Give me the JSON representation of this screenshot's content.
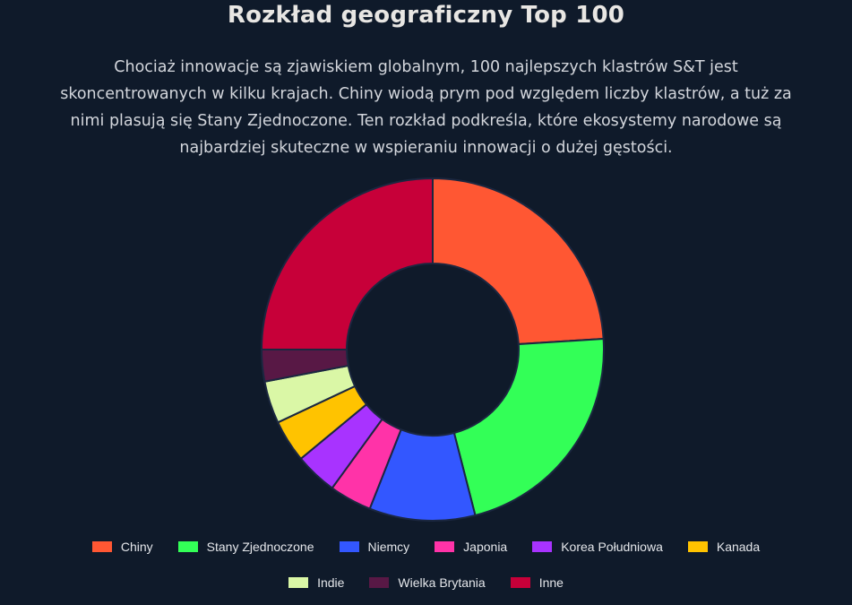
{
  "title": "Rozkład geograficzny Top 100",
  "description": "Chociaż innowacje są zjawiskiem globalnym, 100 najlepszych klastrów S&T jest skoncentrowanych w kilku krajach. Chiny wiodą prym pod względem liczby klastrów, a tuż za nimi plasują się Stany Zjednoczone. Ten rozkład podkreśla, które ekosystemy narodowe są najbardziej skuteczne w wspieraniu innowacji o dużej gęstości.",
  "chart_data": {
    "type": "pie",
    "variant": "doughnut",
    "categories": [
      "Chiny",
      "Stany Zjednoczone",
      "Niemcy",
      "Japonia",
      "Korea Południowa",
      "Kanada",
      "Indie",
      "Wielka Brytania",
      "Inne"
    ],
    "values": [
      24,
      22,
      10,
      4,
      4,
      4,
      4,
      3,
      25
    ],
    "colors": [
      "#ff5733",
      "#33ff57",
      "#3357ff",
      "#ff33a8",
      "#a833ff",
      "#ffc300",
      "#daf7a6",
      "#581845",
      "#c70039"
    ],
    "legend_position": "bottom"
  }
}
